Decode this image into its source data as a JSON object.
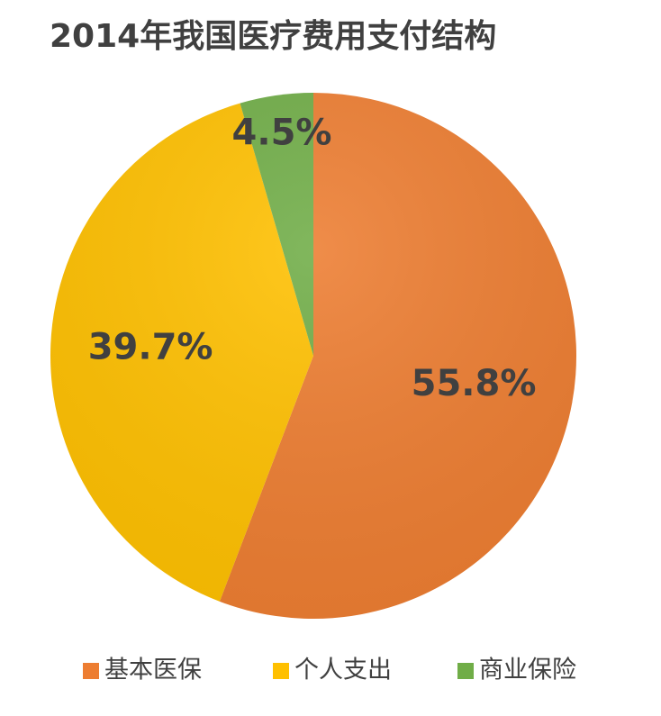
{
  "chart_data": {
    "type": "pie",
    "title": "2014年我国医疗费用支付结构",
    "categories": [
      "基本医保",
      "个人支出",
      "商业保险"
    ],
    "values": [
      55.8,
      39.7,
      4.5
    ],
    "value_labels": [
      "55.8%",
      "39.7%",
      "4.5%"
    ],
    "colors": [
      "#ed7d31",
      "#ffc000",
      "#70ad47"
    ],
    "legend": "bottom"
  }
}
